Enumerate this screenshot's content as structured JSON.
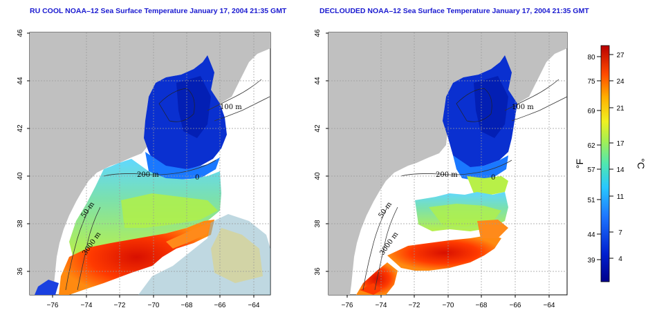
{
  "titles": {
    "left": "RU COOL NOAA–12 Sea Surface Temperature January 17, 2004 21:35 GMT",
    "right": "DECLOUDED NOAA–12 Sea Surface Temperature January 17, 2004 21:35 GMT"
  },
  "axes": {
    "x_ticks": [
      "−76",
      "−74",
      "−72",
      "−70",
      "−68",
      "−66",
      "−64"
    ],
    "y_ticks": [
      "46",
      "44",
      "42",
      "40",
      "38",
      "36"
    ]
  },
  "contours": {
    "label_100": "100 m",
    "label_200": "200 m",
    "label_50": "50 m",
    "label_3000": "3000 m",
    "label_0": "0"
  },
  "colorbar": {
    "fahrenheit_ticks": [
      "80",
      "75",
      "69",
      "62",
      "57",
      "51",
      "44",
      "39"
    ],
    "celsius_ticks": [
      "27",
      "24",
      "21",
      "17",
      "14",
      "11",
      "7",
      "4"
    ],
    "unit_f": "°F",
    "unit_c": "°C"
  },
  "colors": {
    "land": "#c0c0c0",
    "cold": "#0022cc",
    "cool": "#2a9cff",
    "mild": "#5fe0a0",
    "warm": "#f0ea2a",
    "hot": "#ff5a0a",
    "hottest": "#c40000",
    "title": "#1a1ad0"
  }
}
